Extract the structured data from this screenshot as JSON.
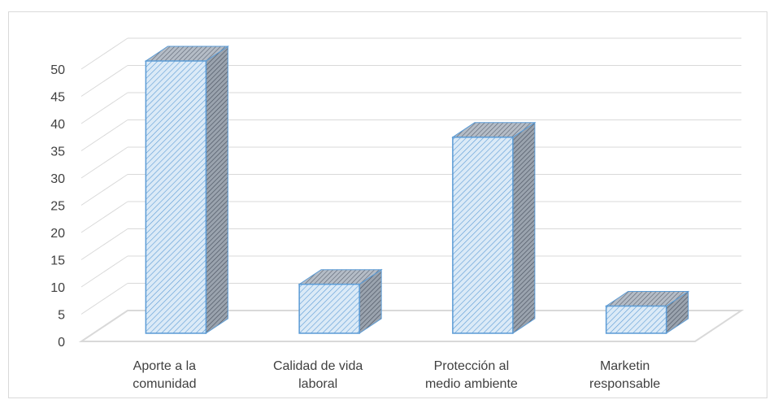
{
  "chart_data": {
    "type": "bar",
    "categories": [
      [
        "Aporte a la",
        "comunidad"
      ],
      [
        "Calidad de vida",
        "laboral"
      ],
      [
        "Protección al",
        "medio ambiente"
      ],
      [
        "Marketin",
        "responsable"
      ]
    ],
    "values": [
      50,
      9,
      36,
      5
    ],
    "yticks": [
      "0",
      "5",
      "10",
      "15",
      "20",
      "25",
      "30",
      "35",
      "40",
      "45",
      "50"
    ],
    "ylim": [
      0,
      50
    ],
    "grid": true,
    "style": "3d-column-hatched",
    "colors": {
      "bar_fill": "#dbeaf7",
      "bar_hatch": "#5b9bd5",
      "bar_side": "#7f8896",
      "bar_outline": "#5b9bd5",
      "grid": "#d9d9d9",
      "floor": "#d9d9d9"
    }
  }
}
